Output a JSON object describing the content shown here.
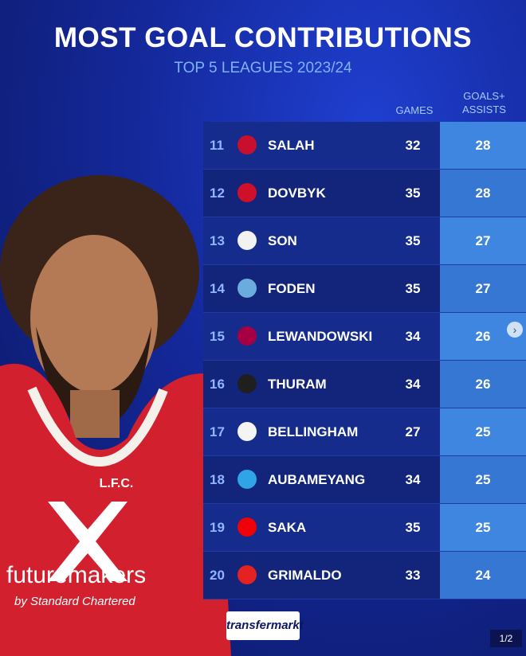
{
  "header": {
    "title": "MOST GOAL CONTRIBUTIONS",
    "subtitle": "TOP 5 LEAGUES 2023/24"
  },
  "table": {
    "columns": [
      "GAMES",
      [
        "GOALS+",
        "ASSISTS"
      ]
    ],
    "rows": [
      {
        "rank": 11,
        "player": "SALAH",
        "games": 32,
        "goal_contributions": 28
      },
      {
        "rank": 12,
        "player": "DOVBYK",
        "games": 35,
        "goal_contributions": 28
      },
      {
        "rank": 13,
        "player": "SON",
        "games": 35,
        "goal_contributions": 27
      },
      {
        "rank": 14,
        "player": "FODEN",
        "games": 35,
        "goal_contributions": 27
      },
      {
        "rank": 15,
        "player": "LEWANDOWSKI",
        "games": 34,
        "goal_contributions": 26
      },
      {
        "rank": 16,
        "player": "THURAM",
        "games": 34,
        "goal_contributions": 26
      },
      {
        "rank": 17,
        "player": "BELLINGHAM",
        "games": 27,
        "goal_contributions": 25
      },
      {
        "rank": 18,
        "player": "AUBAMEYANG",
        "games": 34,
        "goal_contributions": 25
      },
      {
        "rank": 19,
        "player": "SAKA",
        "games": 35,
        "goal_contributions": 25
      },
      {
        "rank": 20,
        "player": "GRIMALDO",
        "games": 33,
        "goal_contributions": 24
      }
    ]
  },
  "shirt": {
    "crest": "L.F.C.",
    "sponsor": "futuremakers",
    "sponsor_sub": "by Standard Chartered"
  },
  "footer": {
    "brand": "transfermarkt",
    "page": "1/2"
  }
}
